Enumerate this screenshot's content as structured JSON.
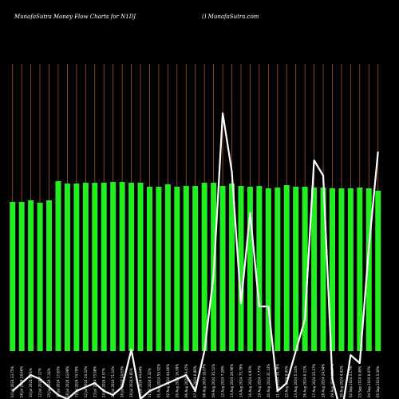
{
  "header": {
    "title": "MunafaSutra  Money Flow  Charts for N1DJ",
    "site": "() MunafaSutra.com"
  },
  "colors": {
    "background": "#000000",
    "bar": "#22ee22",
    "gridline": "#a0522d",
    "line": "#ffffff"
  },
  "chart_data": {
    "type": "bar",
    "title": "MunafaSutra  Money Flow  Charts for N1DJ",
    "grid": true,
    "x_tick_labels": [
      "03 Jul 2024 33.75%",
      "08 Jul 2024 24.66%",
      "10 Jul 2024 6.74%",
      "12 Jul 2024 7.12%",
      "15 Jul 2024 7.14%",
      "16 Jul 2024 17.83%",
      "18 Jul 2024 43.98%",
      "19 Jul 2024 74.79%",
      "22 Jul 2024 24.32%",
      "23 Jul 2024 73.98%",
      "24 Jul 2024 8.57%",
      "25 Jul 2024 71.32%",
      "26 Jul 2024 24.63%",
      "29 Jul 2024 9.85%",
      "30 Jul 2024 44.44%",
      "31 Jul 2024 6.32%",
      "01 Aug 2024 55.92%",
      "02 Aug 2024 44.66%",
      "05 Aug 2024 16.99%",
      "06 Aug 2024 79.47%",
      "07 Aug 2024 6.86%",
      "08 Aug 2024 16.07%",
      "09 Aug 2024 35.51%",
      "12 Aug 2024 7.28%",
      "13 Aug 2024 26.96%",
      "14 Aug 2024 75.79%",
      "16 Aug 2024 4.93%",
      "19 Aug 2024 7.77%",
      "20 Aug 2024 31.13%",
      "21 Aug 2024 34.78%",
      "22 Aug 2024 9.45%",
      "23 Aug 2024 5.14%",
      "26 Aug 2024 6.11%",
      "27 Aug 2024 25.17%",
      "28 Aug 2024 24.94%",
      "29 Aug 2024 13.87%",
      "30 Aug 2024 4.42%",
      "02 Sep 2024 3.17%",
      "03 Sep 2024 9.49%",
      "04 Sep 2024 8.47%",
      "05 Sep 2024 3.30%"
    ],
    "series": [
      {
        "values": [
          187,
          187,
          189,
          186,
          189,
          213,
          210,
          210,
          211,
          211,
          211,
          212,
          212,
          211,
          211,
          206,
          206,
          209,
          206,
          207,
          207,
          211,
          211,
          207,
          210,
          207,
          206,
          207,
          204,
          205,
          208,
          206,
          206,
          205,
          205,
          204,
          204,
          204,
          205,
          204,
          201
        ]
      },
      {
        "values": [
          -50,
          -40,
          -30,
          -35,
          -45,
          -55,
          -60,
          -50,
          -45,
          -40,
          -50,
          -55,
          -45,
          2,
          -60,
          -50,
          -45,
          -40,
          -35,
          -30,
          -50,
          0,
          95,
          298,
          225,
          60,
          173,
          56,
          56,
          -50,
          -40,
          0,
          40,
          239,
          220,
          -35,
          -80,
          -5,
          -15,
          130,
          250
        ]
      }
    ],
    "series_types": [
      "bar",
      "line"
    ]
  }
}
